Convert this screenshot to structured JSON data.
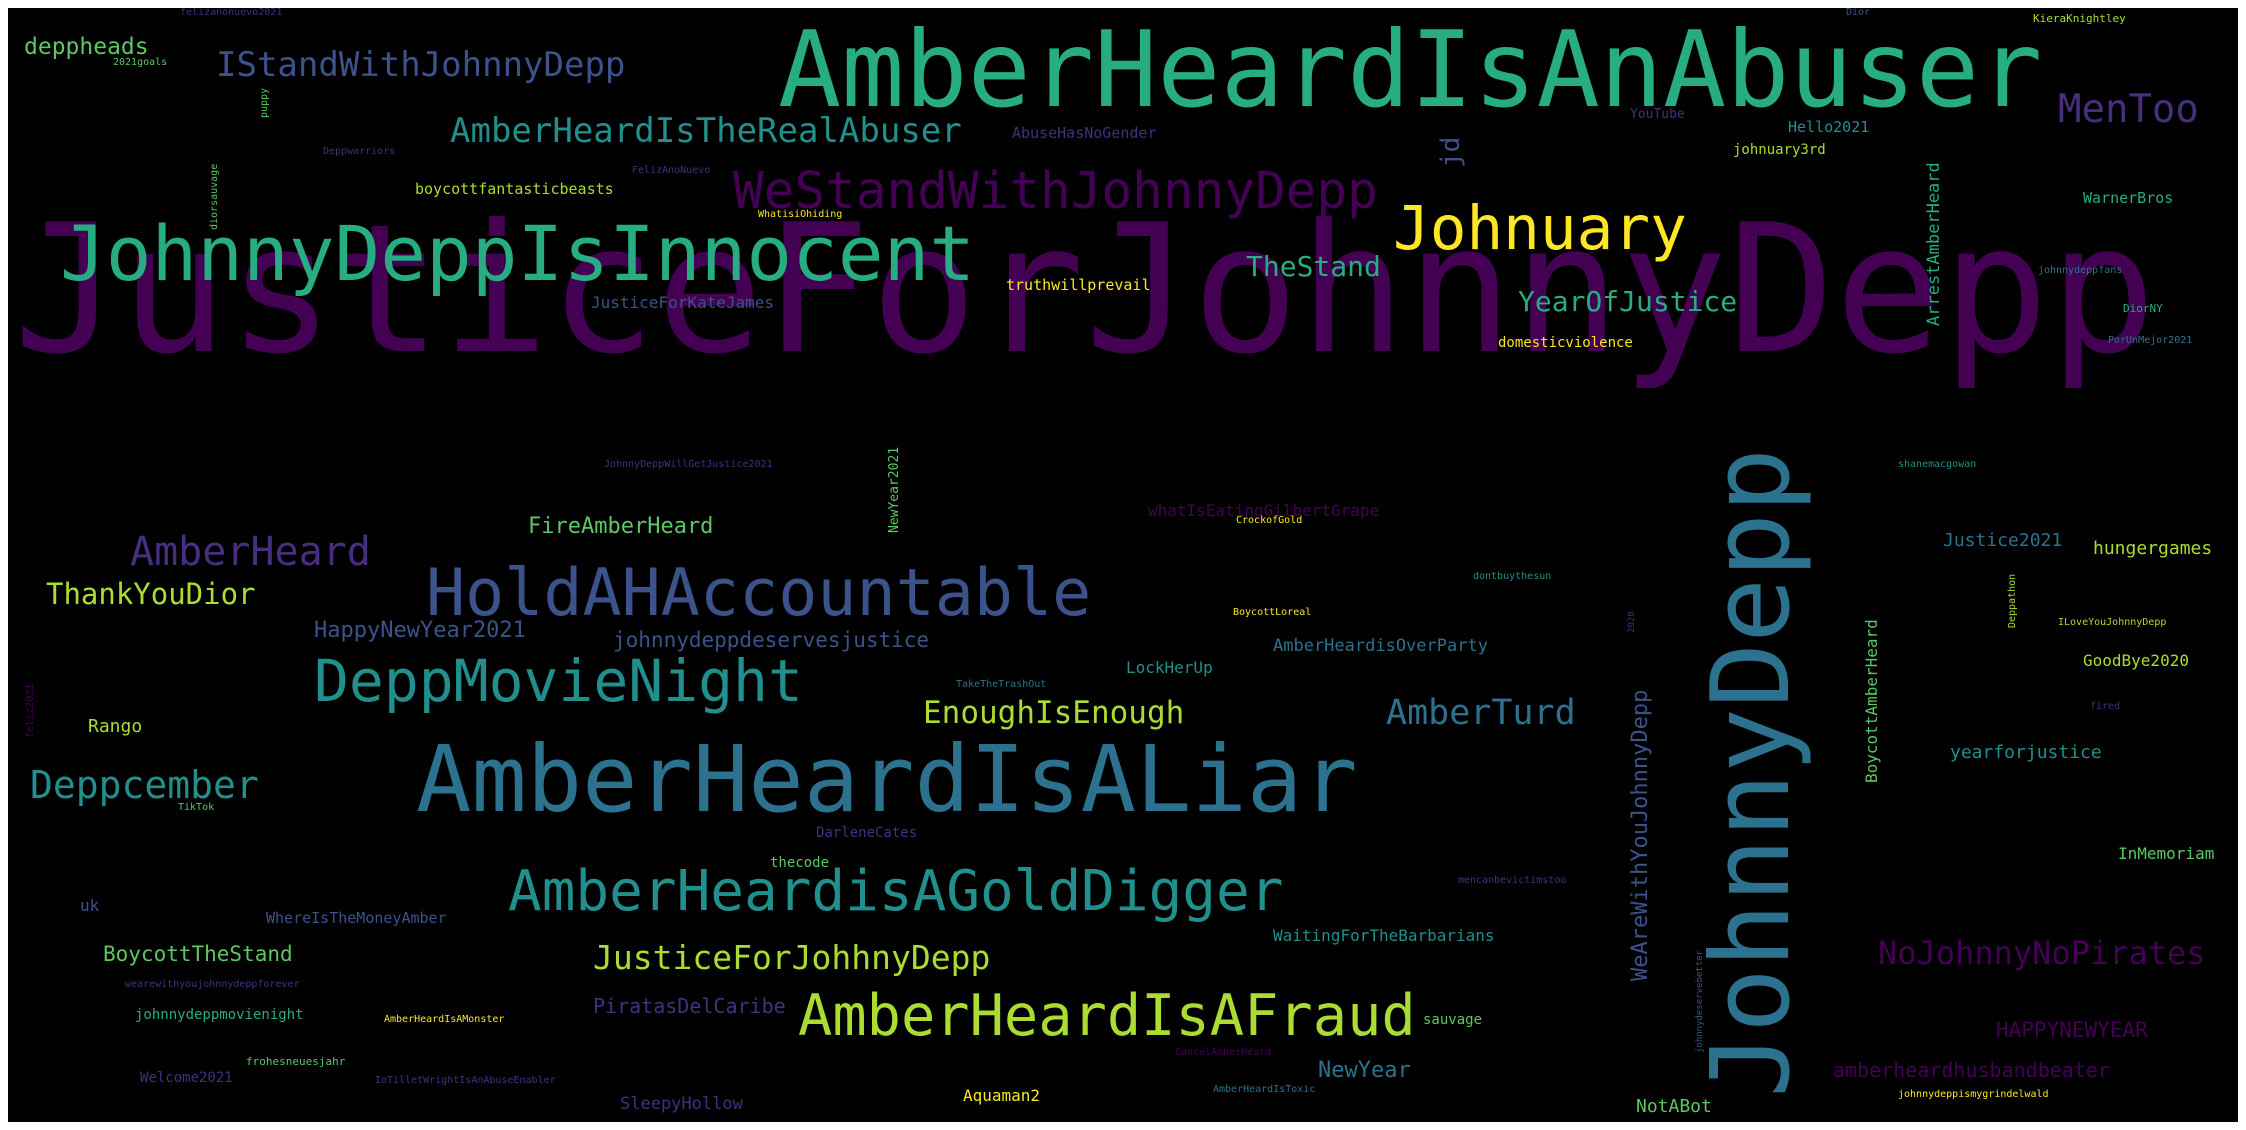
{
  "palette": {
    "purple": "#440154",
    "indigo": "#472f7d",
    "blue": "#3b528b",
    "steel": "#2c728e",
    "teal": "#21908d",
    "sea": "#27ad81",
    "green": "#5cc863",
    "lime": "#aadc32",
    "yellow": "#fde725"
  },
  "words": {
    "w1": "JusticeForJohnnyDepp",
    "w2": "AmberHeardIsAnAbuser",
    "w3": "JohnnyDepp",
    "w4": "AmberHeardIsALiar",
    "w5": "JohnnyDeppIsInnocent",
    "w6": "HoldAHAccountable",
    "w7": "AmberHeardIsAFraud",
    "w8": "AmberHeardisAGoldDigger",
    "w9": "DeppMovieNight",
    "w10": "WeStandWithJohnnyDepp",
    "w11": "Johnuary",
    "w12": "IStandWithJohnnyDepp",
    "w13": "AmberHeardIsTheRealAbuser",
    "w14": "MenToo",
    "w15": "AmberHeard",
    "w16": "Deppcember",
    "w17": "JusticeForJohhnyDepp",
    "w18": "EnoughIsEnough",
    "w19": "AmberTurd",
    "w20": "NoJohnnyNoPirates",
    "w21": "ThankYouDior",
    "w22": "TheStand",
    "w23": "YearOfJustice",
    "w24": "deppheads",
    "w25": "jd",
    "w26": "FireAmberHeard",
    "w27": "HappyNewYear2021",
    "w28": "johnnydeppdeservesjustice",
    "w29": "BoycottTheStand",
    "w30": "WeAreWithYouJohnnyDepp",
    "w31": "HAPPYNEWYEAR",
    "w32": "amberheardhusbandbeater",
    "w33": "NewYear",
    "w34": "PiratasDelCaribe",
    "w35": "hungergames",
    "w36": "Justice2021",
    "w37": "yearforjustice",
    "w38": "Rango",
    "w39": "ArrestAmberHeard",
    "w40": "BoycottAmberHeard",
    "w41": "GoodBye2020",
    "w42": "InMemoriam",
    "w43": "NotABot",
    "w44": "SleepyHollow",
    "w45": "Aquaman2",
    "w46": "WaitingForTheBarbarians",
    "w47": "AmberHeardisOverParty",
    "w48": "LockHerUp",
    "w49": "truthwillprevail",
    "w50": "boycottfantasticbeasts",
    "w51": "JusticeForKateJames",
    "w52": "whatIsEatingGilbertGrape",
    "w53": "domesticviolence",
    "w54": "AbuseHasNoGender",
    "w55": "Hello2021",
    "w56": "johnuary3rd",
    "w57": "WarnerBros",
    "w58": "WhereIsTheMoneyAmber",
    "w59": "uk",
    "w60": "Welcome2021",
    "w61": "johnnydeppmovienight",
    "w62": "sauvage",
    "w63": "DarleneCates",
    "w64": "thecode",
    "w65": "NewYear2021",
    "w66": "YouTube",
    "w67": "Deppathon",
    "w68": "feliz2021",
    "w69": "felizanonuevo2021",
    "w70": "Dior",
    "w71": "KieraKnightley",
    "w72": "2021goals",
    "w73": "puppy",
    "w74": "Deppwarriors",
    "w75": "diorsauvage",
    "w76": "FelizAnoNuevo",
    "w77": "WhatisiOhiding",
    "w78": "johnnydeppfans",
    "w79": "DiorNY",
    "w80": "PorUnMejor2021",
    "w81": "JohnnyDeppWillGetJustice2021",
    "w82": "shanemacgowan",
    "w83": "CrockofGold",
    "w84": "dontbuythesun",
    "w85": "BoycottLoreal",
    "w86": "2020",
    "w87": "ILoveYouJohnnyDepp",
    "w88": "TakeTheTrashOut",
    "w89": "fired",
    "w90": "TikTok",
    "w91": "mencanbevictimstoo",
    "w92": "wearewithyoujohnnydeppforever",
    "w93": "AmberHeardIsAMonster",
    "w94": "CancelAmberHeard",
    "w95": "johnnydeservebetter",
    "w96": "frohesneuesjahr",
    "w97": "IoTilletWrightIsAnAbuseEnabler",
    "w98": "AmberHeardIsToxic",
    "w99": "johnnydeppismygrindelwald"
  }
}
